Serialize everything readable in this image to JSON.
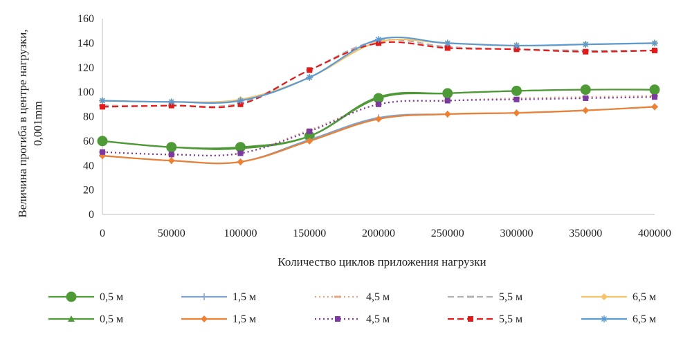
{
  "chart_data": {
    "type": "line",
    "xlabel": "Количество циклов приложения нагрузки",
    "ylabel_lines": [
      "Величина прогиба в центре нагрузки,",
      "0,001mm"
    ],
    "x": [
      0,
      50000,
      100000,
      150000,
      200000,
      250000,
      300000,
      350000,
      400000
    ],
    "x_tick_labels": [
      "0",
      "50000",
      "100000",
      "150000",
      "200000",
      "250000",
      "300000",
      "350000",
      "400000"
    ],
    "ylim": [
      0,
      160
    ],
    "y_ticks": [
      0,
      20,
      40,
      60,
      80,
      100,
      120,
      140,
      160
    ],
    "grid": false,
    "legend_position": "bottom",
    "series": [
      {
        "name": "0,5 м",
        "color": "#4e9a36",
        "dash": "solid",
        "marker": "circle",
        "values": [
          60,
          55,
          55,
          64,
          95,
          99,
          101,
          102,
          102
        ]
      },
      {
        "name": "1,5 м",
        "color": "#7fa3cf",
        "dash": "solid",
        "marker": "plus",
        "values": [
          48,
          44,
          43,
          61,
          79,
          82,
          83,
          85,
          88
        ]
      },
      {
        "name": "4,5 м",
        "color": "#e6a57f",
        "dash": "dot",
        "marker": "dash",
        "values": [
          51,
          49,
          50,
          69,
          90,
          93,
          95,
          96,
          97
        ]
      },
      {
        "name": "5,5 м",
        "color": "#b0b0b0",
        "dash": "dash",
        "marker": "dash",
        "values": [
          89,
          89,
          91,
          118,
          142,
          137,
          135,
          134,
          134
        ]
      },
      {
        "name": "6,5 м",
        "color": "#f5c36b",
        "dash": "solid",
        "marker": "diamond",
        "values": [
          93,
          92,
          94,
          112,
          141,
          140,
          138,
          139,
          140
        ]
      },
      {
        "name": "0,5 м",
        "color": "#4e9a36",
        "dash": "solid",
        "marker": "triangle",
        "values": [
          60,
          55,
          54,
          64,
          96,
          99,
          101,
          102,
          102
        ]
      },
      {
        "name": "1,5 м",
        "color": "#ee8033",
        "dash": "solid",
        "marker": "diamond",
        "values": [
          48,
          44,
          43,
          60,
          78,
          82,
          83,
          85,
          88
        ]
      },
      {
        "name": "4,5 м",
        "color": "#7a3aa0",
        "dash": "dot",
        "marker": "square",
        "values": [
          51,
          49,
          50,
          68,
          90,
          93,
          94,
          95,
          96
        ]
      },
      {
        "name": "5,5 м",
        "color": "#e31a1a",
        "dash": "dash",
        "marker": "square",
        "values": [
          88,
          89,
          90,
          118,
          140,
          136,
          135,
          133,
          134
        ]
      },
      {
        "name": "6,5 м",
        "color": "#5b9bd5",
        "dash": "solid",
        "marker": "star",
        "values": [
          93,
          92,
          93,
          112,
          143,
          140,
          138,
          139,
          140
        ]
      }
    ]
  }
}
